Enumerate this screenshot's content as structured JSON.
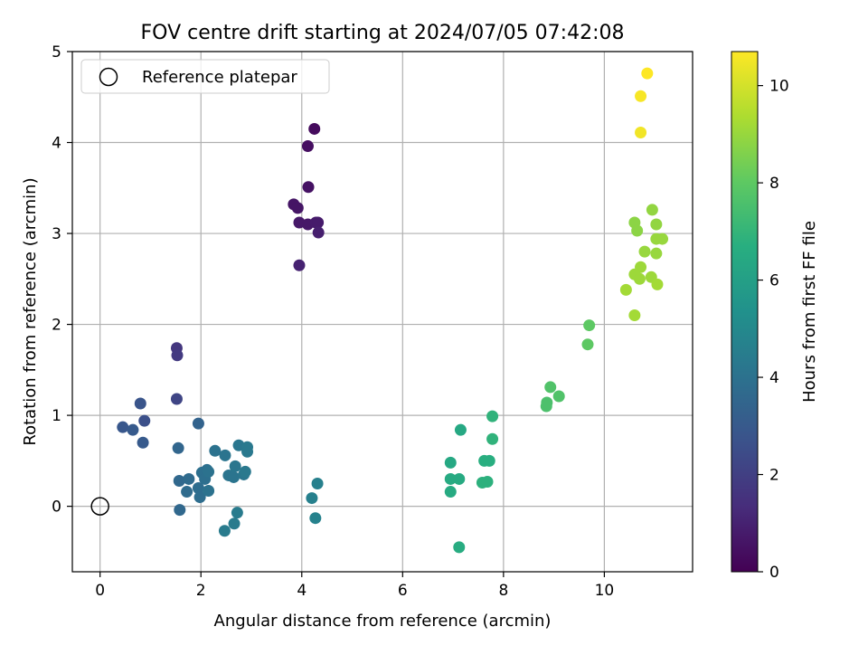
{
  "chart_data": {
    "type": "scatter",
    "title": "FOV centre drift starting at 2024/07/05 07:42:08",
    "xlabel": "Angular distance from reference (arcmin)",
    "ylabel": "Rotation from reference (arcmin)",
    "xlim": [
      -0.55,
      11.75
    ],
    "ylim": [
      -0.72,
      5.0
    ],
    "xticks": [
      0,
      2,
      4,
      6,
      8,
      10
    ],
    "yticks": [
      0,
      1,
      2,
      3,
      4,
      5
    ],
    "grid": true,
    "legend": {
      "location": "upper-left",
      "entries": [
        "Reference platepar"
      ]
    },
    "reference_point": {
      "x": 0,
      "y": 0,
      "marker": "open-circle"
    },
    "colorbar": {
      "label": "Hours from first FF file",
      "colormap": "viridis",
      "range": [
        0,
        10.7
      ],
      "ticks": [
        0,
        2,
        4,
        6,
        8,
        10
      ]
    },
    "points": [
      {
        "x": 4.25,
        "y": 4.15,
        "c": 0.3
      },
      {
        "x": 4.12,
        "y": 3.96,
        "c": 0.4
      },
      {
        "x": 4.13,
        "y": 3.51,
        "c": 0.5
      },
      {
        "x": 3.84,
        "y": 3.32,
        "c": 0.6
      },
      {
        "x": 3.92,
        "y": 3.28,
        "c": 0.6
      },
      {
        "x": 3.95,
        "y": 3.12,
        "c": 0.7
      },
      {
        "x": 4.12,
        "y": 3.1,
        "c": 0.7
      },
      {
        "x": 4.28,
        "y": 3.12,
        "c": 0.8
      },
      {
        "x": 4.32,
        "y": 3.12,
        "c": 0.8
      },
      {
        "x": 4.33,
        "y": 3.01,
        "c": 0.9
      },
      {
        "x": 3.95,
        "y": 2.65,
        "c": 1.0
      },
      {
        "x": 1.52,
        "y": 1.74,
        "c": 1.7
      },
      {
        "x": 1.53,
        "y": 1.66,
        "c": 1.8
      },
      {
        "x": 1.52,
        "y": 1.18,
        "c": 2.2
      },
      {
        "x": 0.88,
        "y": 0.94,
        "c": 2.6
      },
      {
        "x": 0.8,
        "y": 1.13,
        "c": 2.8
      },
      {
        "x": 0.45,
        "y": 0.87,
        "c": 2.9
      },
      {
        "x": 0.65,
        "y": 0.84,
        "c": 3.0
      },
      {
        "x": 0.85,
        "y": 0.7,
        "c": 3.0
      },
      {
        "x": 1.95,
        "y": 0.91,
        "c": 3.4
      },
      {
        "x": 1.55,
        "y": 0.64,
        "c": 3.5
      },
      {
        "x": 1.57,
        "y": 0.28,
        "c": 3.6
      },
      {
        "x": 1.58,
        "y": -0.04,
        "c": 3.6
      },
      {
        "x": 1.72,
        "y": 0.16,
        "c": 3.7
      },
      {
        "x": 1.76,
        "y": 0.3,
        "c": 3.7
      },
      {
        "x": 1.95,
        "y": 0.2,
        "c": 3.8
      },
      {
        "x": 1.98,
        "y": 0.1,
        "c": 3.8
      },
      {
        "x": 2.02,
        "y": 0.37,
        "c": 3.9
      },
      {
        "x": 2.08,
        "y": 0.3,
        "c": 3.9
      },
      {
        "x": 2.12,
        "y": 0.4,
        "c": 3.9
      },
      {
        "x": 2.15,
        "y": 0.38,
        "c": 4.0
      },
      {
        "x": 2.15,
        "y": 0.17,
        "c": 4.0
      },
      {
        "x": 2.28,
        "y": 0.61,
        "c": 4.0
      },
      {
        "x": 2.48,
        "y": 0.56,
        "c": 4.1
      },
      {
        "x": 2.55,
        "y": 0.34,
        "c": 4.1
      },
      {
        "x": 2.65,
        "y": 0.32,
        "c": 4.1
      },
      {
        "x": 2.68,
        "y": 0.44,
        "c": 4.2
      },
      {
        "x": 2.75,
        "y": 0.67,
        "c": 4.2
      },
      {
        "x": 2.85,
        "y": 0.35,
        "c": 4.2
      },
      {
        "x": 2.88,
        "y": 0.38,
        "c": 4.3
      },
      {
        "x": 2.92,
        "y": 0.65,
        "c": 4.3
      },
      {
        "x": 2.92,
        "y": 0.6,
        "c": 4.3
      },
      {
        "x": 2.72,
        "y": -0.07,
        "c": 4.4
      },
      {
        "x": 2.66,
        "y": -0.19,
        "c": 4.4
      },
      {
        "x": 2.47,
        "y": -0.27,
        "c": 4.4
      },
      {
        "x": 4.31,
        "y": 0.25,
        "c": 4.6
      },
      {
        "x": 4.2,
        "y": 0.09,
        "c": 4.6
      },
      {
        "x": 4.27,
        "y": -0.13,
        "c": 4.7
      },
      {
        "x": 7.15,
        "y": 0.84,
        "c": 6.4
      },
      {
        "x": 6.95,
        "y": 0.48,
        "c": 6.4
      },
      {
        "x": 6.95,
        "y": 0.3,
        "c": 6.5
      },
      {
        "x": 7.12,
        "y": 0.3,
        "c": 6.5
      },
      {
        "x": 6.95,
        "y": 0.16,
        "c": 6.5
      },
      {
        "x": 7.12,
        "y": -0.45,
        "c": 6.6
      },
      {
        "x": 7.62,
        "y": 0.5,
        "c": 6.7
      },
      {
        "x": 7.72,
        "y": 0.5,
        "c": 6.7
      },
      {
        "x": 7.58,
        "y": 0.26,
        "c": 6.8
      },
      {
        "x": 7.68,
        "y": 0.27,
        "c": 6.8
      },
      {
        "x": 7.78,
        "y": 0.99,
        "c": 6.9
      },
      {
        "x": 7.78,
        "y": 0.74,
        "c": 6.9
      },
      {
        "x": 8.85,
        "y": 1.1,
        "c": 7.6
      },
      {
        "x": 8.86,
        "y": 1.14,
        "c": 7.6
      },
      {
        "x": 8.93,
        "y": 1.31,
        "c": 7.7
      },
      {
        "x": 9.1,
        "y": 1.21,
        "c": 7.7
      },
      {
        "x": 9.67,
        "y": 1.78,
        "c": 8.0
      },
      {
        "x": 9.7,
        "y": 1.99,
        "c": 8.0
      },
      {
        "x": 10.6,
        "y": 3.12,
        "c": 8.8
      },
      {
        "x": 10.65,
        "y": 3.03,
        "c": 8.8
      },
      {
        "x": 10.95,
        "y": 3.26,
        "c": 8.9
      },
      {
        "x": 11.03,
        "y": 3.1,
        "c": 8.9
      },
      {
        "x": 11.03,
        "y": 2.94,
        "c": 9.0
      },
      {
        "x": 11.15,
        "y": 2.94,
        "c": 9.0
      },
      {
        "x": 10.8,
        "y": 2.8,
        "c": 9.0
      },
      {
        "x": 11.03,
        "y": 2.78,
        "c": 9.0
      },
      {
        "x": 10.72,
        "y": 2.63,
        "c": 9.1
      },
      {
        "x": 10.6,
        "y": 2.55,
        "c": 9.1
      },
      {
        "x": 10.7,
        "y": 2.5,
        "c": 9.1
      },
      {
        "x": 10.93,
        "y": 2.52,
        "c": 9.1
      },
      {
        "x": 10.43,
        "y": 2.38,
        "c": 9.2
      },
      {
        "x": 11.05,
        "y": 2.44,
        "c": 9.2
      },
      {
        "x": 10.6,
        "y": 2.1,
        "c": 9.2
      },
      {
        "x": 10.72,
        "y": 4.11,
        "c": 10.5
      },
      {
        "x": 10.72,
        "y": 4.51,
        "c": 10.6
      },
      {
        "x": 10.85,
        "y": 4.76,
        "c": 10.7
      }
    ]
  }
}
